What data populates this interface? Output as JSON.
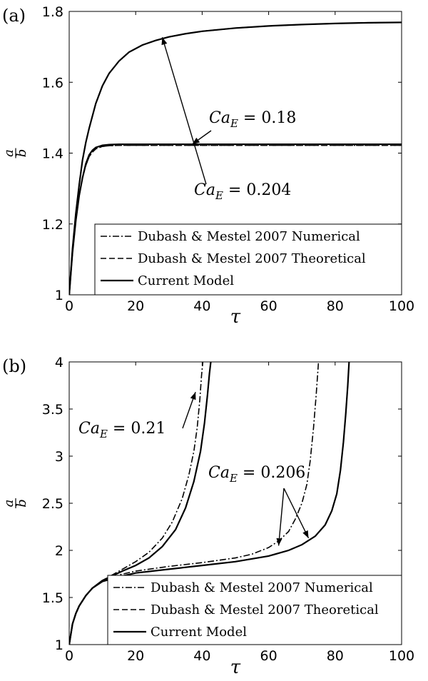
{
  "chart_data": [
    {
      "type": "line",
      "panel_label": "(a)",
      "xlabel": "τ",
      "ylabel_num": "a",
      "ylabel_den": "b",
      "xlim": [
        0,
        100
      ],
      "ylim": [
        1,
        1.8
      ],
      "xticks": [
        0,
        20,
        40,
        60,
        80,
        100
      ],
      "yticks": [
        1,
        1.2,
        1.4,
        1.6,
        1.8
      ],
      "xtick_labels": [
        "0",
        "20",
        "40",
        "60",
        "80",
        "100"
      ],
      "ytick_labels": [
        "1",
        "1.2",
        "1.4",
        "1.6",
        "1.8"
      ],
      "legend_position": "bottom-right",
      "legend": [
        {
          "label": "Dubash & Mestel 2007 Numerical",
          "style": "dashdot"
        },
        {
          "label": "Dubash & Mestel 2007 Theoretical",
          "style": "dashed"
        },
        {
          "label": "Current Model",
          "style": "solid"
        }
      ],
      "annotations": [
        {
          "text_main": "Ca",
          "text_sub": "E",
          "text_rest": " = 0.204",
          "arrow_to": [
            28,
            1.727
          ]
        },
        {
          "text_main": "Ca",
          "text_sub": "E",
          "text_rest": " = 0.18",
          "arrow_to": [
            37,
            1.425
          ]
        }
      ],
      "series": [
        {
          "label": "Dubash & Mestel 2007 Numerical",
          "style": "dashdot",
          "x": [
            0,
            1,
            2,
            3,
            4,
            5,
            6,
            8,
            10,
            12,
            15,
            18,
            22,
            26,
            30,
            35,
            40,
            50,
            60,
            70,
            80,
            90,
            100
          ],
          "y": [
            1.0,
            1.13,
            1.23,
            1.31,
            1.38,
            1.43,
            1.47,
            1.54,
            1.59,
            1.625,
            1.66,
            1.685,
            1.705,
            1.718,
            1.728,
            1.737,
            1.744,
            1.753,
            1.759,
            1.763,
            1.766,
            1.768,
            1.769
          ]
        },
        {
          "label": "Dubash & Mestel 2007 Theoretical",
          "style": "dashed",
          "x": [
            0,
            1,
            2,
            3,
            4,
            5,
            6,
            8,
            10,
            12,
            15,
            18,
            22,
            26,
            30,
            35,
            40,
            50,
            60,
            70,
            80,
            90,
            100
          ],
          "y": [
            1.0,
            1.13,
            1.23,
            1.31,
            1.38,
            1.43,
            1.47,
            1.54,
            1.59,
            1.625,
            1.66,
            1.685,
            1.705,
            1.718,
            1.728,
            1.737,
            1.744,
            1.753,
            1.759,
            1.763,
            1.766,
            1.768,
            1.769
          ]
        },
        {
          "label": "Current Model",
          "style": "solid",
          "x": [
            0,
            1,
            2,
            3,
            4,
            5,
            6,
            8,
            10,
            12,
            15,
            18,
            22,
            26,
            30,
            35,
            40,
            50,
            60,
            70,
            80,
            90,
            100
          ],
          "y": [
            1.0,
            1.13,
            1.23,
            1.31,
            1.38,
            1.43,
            1.47,
            1.54,
            1.59,
            1.625,
            1.66,
            1.685,
            1.705,
            1.718,
            1.728,
            1.737,
            1.744,
            1.753,
            1.759,
            1.763,
            1.766,
            1.768,
            1.769
          ]
        },
        {
          "label": "Dubash & Mestel 2007 Numerical",
          "style": "dashdot",
          "x": [
            0,
            1,
            2,
            3,
            4,
            5,
            6,
            7,
            8,
            10,
            12,
            15,
            20,
            30,
            40,
            60,
            80,
            100
          ],
          "y": [
            1.0,
            1.12,
            1.21,
            1.28,
            1.33,
            1.365,
            1.39,
            1.403,
            1.412,
            1.419,
            1.421,
            1.422,
            1.422,
            1.422,
            1.422,
            1.422,
            1.422,
            1.422
          ]
        },
        {
          "label": "Dubash & Mestel 2007 Theoretical",
          "style": "dashed",
          "x": [
            0,
            1,
            2,
            3,
            4,
            5,
            6,
            7,
            8,
            10,
            12,
            15,
            20,
            30,
            40,
            60,
            80,
            100
          ],
          "y": [
            1.0,
            1.12,
            1.21,
            1.28,
            1.33,
            1.365,
            1.39,
            1.403,
            1.412,
            1.419,
            1.421,
            1.422,
            1.422,
            1.422,
            1.422,
            1.422,
            1.422,
            1.422
          ]
        },
        {
          "label": "Current Model",
          "style": "solid",
          "x": [
            0,
            1,
            2,
            3,
            4,
            5,
            6,
            7,
            8,
            10,
            12,
            15,
            20,
            30,
            40,
            60,
            80,
            100
          ],
          "y": [
            1.0,
            1.12,
            1.21,
            1.28,
            1.33,
            1.37,
            1.395,
            1.408,
            1.416,
            1.422,
            1.424,
            1.425,
            1.425,
            1.425,
            1.425,
            1.425,
            1.425,
            1.425
          ]
        }
      ]
    },
    {
      "type": "line",
      "panel_label": "(b)",
      "xlabel": "τ",
      "ylabel_num": "a",
      "ylabel_den": "b",
      "xlim": [
        0,
        100
      ],
      "ylim": [
        1,
        4
      ],
      "xticks": [
        0,
        20,
        40,
        60,
        80,
        100
      ],
      "yticks": [
        1,
        1.5,
        2,
        2.5,
        3,
        3.5,
        4
      ],
      "xtick_labels": [
        "0",
        "20",
        "40",
        "60",
        "80",
        "100"
      ],
      "ytick_labels": [
        "1",
        "1.5",
        "2",
        "2.5",
        "3",
        "3.5",
        "4"
      ],
      "legend_position": "bottom-right",
      "legend": [
        {
          "label": "Dubash & Mestel 2007 Numerical",
          "style": "dashdot"
        },
        {
          "label": "Dubash & Mestel 2007 Theoretical",
          "style": "dashed"
        },
        {
          "label": "Current Model",
          "style": "solid"
        }
      ],
      "annotations": [
        {
          "text_main": "Ca",
          "text_sub": "E",
          "text_rest": " = 0.21",
          "arrow_to": [
            38,
            3.68
          ]
        },
        {
          "text_main": "Ca",
          "text_sub": "E",
          "text_rest": " = 0.206",
          "arrow_to": [
            63,
            2.05
          ],
          "arrow_to_2": [
            72,
            2.13
          ]
        }
      ],
      "series": [
        {
          "label": "Dubash & Mestel 2007 Numerical",
          "style": "dashdot",
          "x": [
            0,
            1,
            2,
            3,
            5,
            7,
            10,
            13,
            16,
            20,
            24,
            28,
            31,
            34,
            36,
            37.5,
            38.5,
            39.3,
            39.8,
            40.2
          ],
          "y": [
            1.0,
            1.22,
            1.33,
            1.41,
            1.52,
            1.6,
            1.68,
            1.74,
            1.8,
            1.88,
            1.98,
            2.13,
            2.3,
            2.55,
            2.8,
            3.05,
            3.3,
            3.6,
            3.85,
            4.0
          ]
        },
        {
          "label": "Dubash & Mestel 2007 Theoretical",
          "style": "dashed",
          "x": [
            0,
            1,
            2,
            3,
            5,
            7,
            10,
            13,
            16,
            20,
            24,
            28,
            32,
            35,
            37.5,
            39.5,
            40.7,
            41.6,
            42.2,
            42.6
          ],
          "y": [
            1.0,
            1.22,
            1.33,
            1.41,
            1.52,
            1.6,
            1.68,
            1.73,
            1.78,
            1.84,
            1.92,
            2.04,
            2.22,
            2.45,
            2.73,
            3.05,
            3.35,
            3.65,
            3.88,
            4.0
          ]
        },
        {
          "label": "Current Model",
          "style": "solid",
          "x": [
            0,
            1,
            2,
            3,
            5,
            7,
            10,
            13,
            16,
            20,
            24,
            28,
            32,
            35,
            37.5,
            39.5,
            40.7,
            41.6,
            42.2,
            42.6
          ],
          "y": [
            1.0,
            1.22,
            1.33,
            1.41,
            1.52,
            1.6,
            1.68,
            1.73,
            1.78,
            1.84,
            1.92,
            2.04,
            2.22,
            2.45,
            2.73,
            3.05,
            3.35,
            3.65,
            3.88,
            4.0
          ]
        },
        {
          "label": "Dubash & Mestel 2007 Numerical",
          "style": "dashdot",
          "x": [
            0,
            1,
            2,
            3,
            5,
            7,
            10,
            15,
            20,
            30,
            40,
            50,
            55,
            60,
            63,
            66,
            68,
            70,
            71.5,
            72.5,
            73.5,
            74.3,
            75
          ],
          "y": [
            1.0,
            1.22,
            1.33,
            1.41,
            1.52,
            1.6,
            1.67,
            1.74,
            1.78,
            1.83,
            1.87,
            1.92,
            1.96,
            2.03,
            2.1,
            2.2,
            2.33,
            2.5,
            2.7,
            2.95,
            3.3,
            3.65,
            4.0
          ]
        },
        {
          "label": "Dubash & Mestel 2007 Theoretical",
          "style": "dashed",
          "x": [
            0,
            1,
            2,
            3,
            5,
            7,
            10,
            15,
            20,
            30,
            40,
            50,
            60,
            66,
            70,
            74,
            77,
            79,
            80.5,
            81.6,
            82.5,
            83.2,
            83.8,
            84.2
          ],
          "y": [
            1.0,
            1.22,
            1.33,
            1.41,
            1.52,
            1.6,
            1.67,
            1.72,
            1.76,
            1.8,
            1.84,
            1.88,
            1.94,
            2.0,
            2.06,
            2.15,
            2.27,
            2.42,
            2.6,
            2.85,
            3.15,
            3.45,
            3.75,
            4.0
          ]
        },
        {
          "label": "Current Model",
          "style": "solid",
          "x": [
            0,
            1,
            2,
            3,
            5,
            7,
            10,
            15,
            20,
            30,
            40,
            50,
            60,
            66,
            70,
            74,
            77,
            79,
            80.5,
            81.6,
            82.5,
            83.2,
            83.8,
            84.2
          ],
          "y": [
            1.0,
            1.22,
            1.33,
            1.41,
            1.52,
            1.6,
            1.67,
            1.72,
            1.76,
            1.8,
            1.84,
            1.88,
            1.94,
            2.0,
            2.06,
            2.15,
            2.27,
            2.42,
            2.6,
            2.85,
            3.15,
            3.45,
            3.75,
            4.0
          ]
        }
      ]
    }
  ]
}
